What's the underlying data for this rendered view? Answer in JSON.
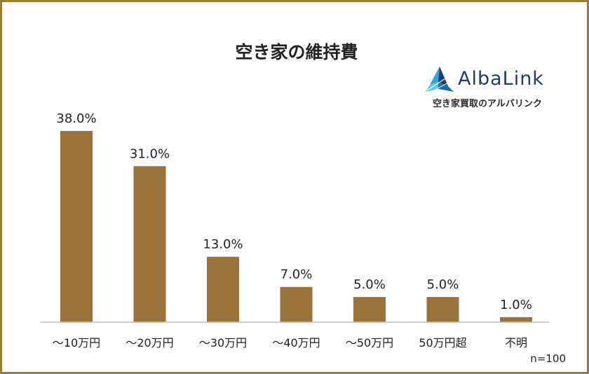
{
  "chart_data": {
    "type": "bar",
    "title": "空き家の維持費",
    "categories": [
      "～10万円",
      "～20万円",
      "～30万円",
      "～40万円",
      "～50万円",
      "50万円超",
      "不明"
    ],
    "values": [
      38.0,
      31.0,
      13.0,
      7.0,
      5.0,
      5.0,
      1.0
    ],
    "value_labels": [
      "38.0%",
      "31.0%",
      "13.0%",
      "7.0%",
      "5.0%",
      "5.0%",
      "1.0%"
    ],
    "xlabel": "",
    "ylabel": "",
    "ylim": [
      0,
      40
    ],
    "grid": false,
    "bar_color": "#9a733a",
    "note": "n=100"
  },
  "brand": {
    "name": "AlbaLink",
    "tagline": "空き家買取のアルバリンク",
    "logo_icon": "albalink-triangle-icon",
    "primary_color": "#1f3b73",
    "accent_color": "#2aa3df"
  },
  "frame": {
    "border_color": "#9c7b3c"
  }
}
